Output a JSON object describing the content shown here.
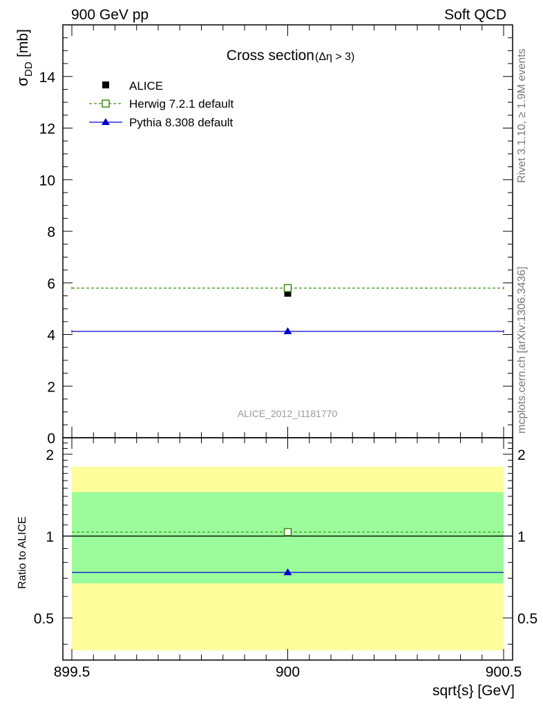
{
  "header": {
    "left": "900 GeV pp",
    "right": "Soft QCD"
  },
  "side_text": {
    "rivet": "Rivet 3.1.10, ≥ 1.9M events",
    "source": "mcplots.cern.ch [arXiv:1306.3436]"
  },
  "watermark": "ALICE_2012_I1181770",
  "chart_data": {
    "type": "scatter",
    "title": "Cross section",
    "title_suffix": "(Δη > 3)",
    "xlabel": "sqrt{s} [GeV]",
    "ylabel": "σ",
    "ylabel_sub": "DD",
    "ylabel_unit": "[mb]",
    "ratio_ylabel": "Ratio to ALICE",
    "xlim": [
      899.5,
      900.5
    ],
    "ylim": [
      0,
      16
    ],
    "x_ticks": [
      "899.5",
      "900",
      "900.5"
    ],
    "y_ticks": [
      "0",
      "2",
      "4",
      "6",
      "8",
      "10",
      "12",
      "14"
    ],
    "ratio_ylim": [
      0.35,
      2.3
    ],
    "ratio_log": true,
    "ratio_ticks": [
      "0.5",
      "1",
      "2"
    ],
    "legend_position": "top-left",
    "series": [
      {
        "name": "ALICE",
        "x": [
          900
        ],
        "y": [
          5.6
        ],
        "color": "#000000",
        "marker": "square-filled",
        "line": "none"
      },
      {
        "name": "Herwig 7.2.1 default",
        "x": [
          900
        ],
        "y": [
          5.8
        ],
        "color": "#3a8c0e",
        "marker": "square-open",
        "line": "dashed",
        "x_range": [
          899.5,
          900.5
        ]
      },
      {
        "name": "Pythia 8.308 default",
        "x": [
          900
        ],
        "y": [
          4.12
        ],
        "color": "#0000cc",
        "marker": "triangle",
        "line": "solid",
        "x_range": [
          899.5,
          900.5
        ]
      }
    ],
    "ratio": [
      {
        "name": "Herwig 7.2.1 default",
        "value": 1.035
      },
      {
        "name": "Pythia 8.308 default",
        "value": 0.735
      }
    ],
    "ratio_bands": {
      "inner": [
        0.67,
        1.45
      ],
      "inner_color": "#9cfc9c",
      "outer": [
        0.38,
        1.8
      ],
      "outer_color": "#fdfd9c"
    }
  }
}
